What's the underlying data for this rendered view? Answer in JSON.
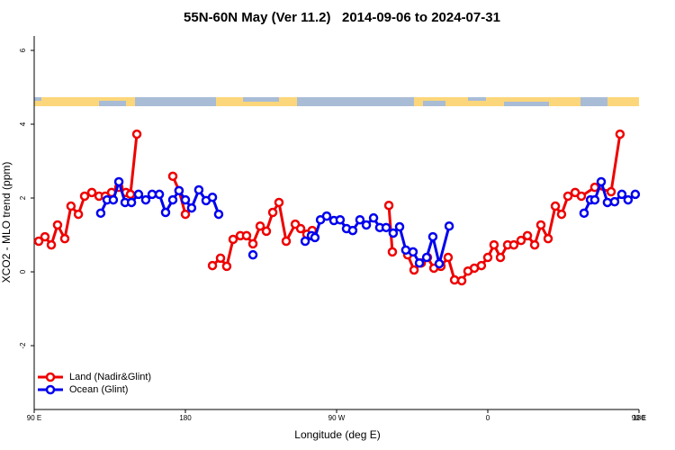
{
  "chart_data": {
    "type": "line",
    "title": "55N-60N May (Ver 11.2)   2014-09-06 to 2024-07-31",
    "xlabel": "Longitude (deg E)",
    "ylabel": "XCO2 - MLO trend (ppm)",
    "xlim": [
      90,
      450
    ],
    "xticks": [
      {
        "value": 90,
        "label": "90 E"
      },
      180,
      {
        "value": 270,
        "label": "90 W"
      },
      {
        "value": 360,
        "label": "0"
      },
      {
        "value": 450,
        "label": "90 E"
      },
      {
        "value": 540,
        "label": "180"
      }
    ],
    "ylim": [
      -3.73,
      6.39
    ],
    "yticks": [
      -2,
      0,
      2,
      4,
      6
    ],
    "legend": "lower left",
    "series": [
      {
        "name": "Land (Nadir&Glint)",
        "color": "#ee0000",
        "x": [
          92.7,
          96.4,
          100.2,
          103.9,
          108.2,
          111.9,
          116.3,
          120.0,
          124.3,
          128.6,
          132.3,
          136.1,
          140.4,
          144.6,
          147.3,
          151.1,
          null,
          172.5,
          176.2,
          180.0,
          null,
          196.1,
          200.9,
          204.6,
          208.4,
          212.7,
          216.4,
          220.2,
          224.5,
          228.2,
          232.0,
          235.7,
          240.0,
          245.4,
          248.6,
          252.3,
          255.5,
          null,
          301.1,
          303.2,
          null,
          312.3,
          316.1,
          320.4,
          324.1,
          327.9,
          332.1,
          336.4,
          340.2,
          344.5,
          348.2,
          352.0,
          356.2,
          360.0,
          363.7,
          367.5,
          371.8,
          375.5,
          379.8,
          383.6,
          387.9,
          391.6,
          395.9,
          400.2,
          403.9,
          407.7,
          412.0,
          415.7,
          423.7,
          433.4,
          438.7
        ],
        "values": [
          0.83,
          0.95,
          0.73,
          1.27,
          0.9,
          1.78,
          1.56,
          2.05,
          2.15,
          2.05,
          2.05,
          2.15,
          2.29,
          2.15,
          2.1,
          3.73,
          null,
          2.59,
          2.2,
          1.56,
          null,
          0.17,
          0.37,
          0.15,
          0.88,
          0.98,
          0.98,
          0.76,
          1.24,
          1.1,
          1.61,
          1.88,
          0.83,
          1.29,
          1.17,
          1.02,
          1.12,
          null,
          1.8,
          0.54,
          null,
          0.46,
          0.05,
          0.24,
          0.39,
          0.1,
          0.15,
          0.39,
          -0.22,
          -0.24,
          0.02,
          0.1,
          0.17,
          0.39,
          0.73,
          0.39,
          0.73,
          0.73,
          0.85,
          0.98,
          0.73,
          1.27,
          0.9,
          1.78,
          1.56,
          2.05,
          2.15,
          2.05,
          2.29,
          2.17,
          3.73
        ]
      },
      {
        "name": "Ocean (Glint)",
        "color": "#0000ee",
        "x": [
          129.6,
          133.4,
          137.1,
          140.4,
          144.1,
          147.9,
          152.1,
          156.4,
          160.2,
          164.5,
          168.2,
          172.5,
          176.2,
          180.0,
          183.7,
          188.0,
          192.3,
          196.1,
          199.8,
          null,
          220.2,
          null,
          251.3,
          255.0,
          257.1,
          260.4,
          264.1,
          268.4,
          272.1,
          275.9,
          279.6,
          283.9,
          287.7,
          292.0,
          295.7,
          299.5,
          303.7,
          307.5,
          311.2,
          315.5,
          319.3,
          323.6,
          327.3,
          331.1,
          337.0,
          null,
          417.3,
          421.1,
          423.7,
          427.5,
          431.2,
          435.5,
          439.8,
          443.5,
          447.8
        ],
        "values": [
          1.59,
          1.95,
          1.95,
          2.44,
          1.88,
          1.88,
          2.1,
          1.95,
          2.1,
          2.1,
          1.61,
          1.95,
          2.2,
          1.95,
          1.73,
          2.22,
          1.93,
          2.02,
          1.56,
          null,
          0.46,
          null,
          0.83,
          0.98,
          0.93,
          1.41,
          1.51,
          1.39,
          1.41,
          1.17,
          1.12,
          1.41,
          1.27,
          1.46,
          1.2,
          1.2,
          1.05,
          1.22,
          0.59,
          0.54,
          0.24,
          0.39,
          0.95,
          0.22,
          1.24,
          null,
          1.59,
          1.95,
          1.95,
          2.44,
          1.88,
          1.9,
          2.1,
          1.95,
          2.1
        ]
      }
    ]
  }
}
